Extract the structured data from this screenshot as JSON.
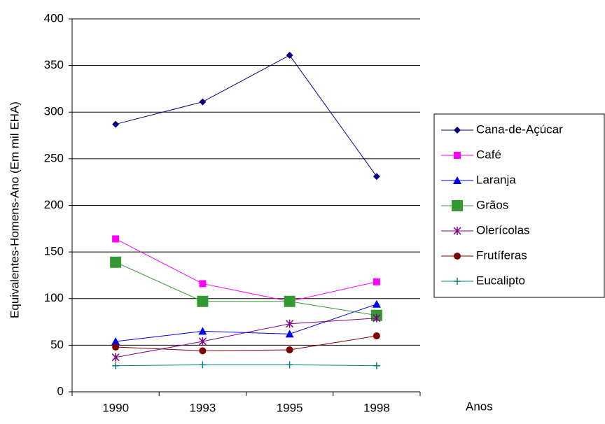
{
  "chart_data": {
    "type": "line",
    "x_label": "Anos",
    "y_label": "Equivalentes-Homens-Ano (Em mil EHA)",
    "categories": [
      "1990",
      "1993",
      "1995",
      "1998"
    ],
    "ylim": [
      0,
      400
    ],
    "yticks": [
      0,
      50,
      100,
      150,
      200,
      250,
      300,
      350,
      400
    ],
    "grid": true,
    "legend": "right",
    "series": [
      {
        "name": "Cana-de-Açúcar",
        "color": "#000080",
        "marker": "diamond",
        "values": [
          287,
          311,
          361,
          231
        ]
      },
      {
        "name": "Café",
        "color": "#ff00ff",
        "marker": "square",
        "values": [
          164,
          116,
          97,
          118
        ]
      },
      {
        "name": "Laranja",
        "color": "#0000ff",
        "marker": "triangle",
        "values": [
          54,
          65,
          62,
          94
        ]
      },
      {
        "name": "Grãos",
        "color": "#339933",
        "marker": "bigsquare",
        "values": [
          139,
          97,
          97,
          82
        ]
      },
      {
        "name": "Olerícolas",
        "color": "#800080",
        "marker": "star",
        "values": [
          37,
          54,
          73,
          79
        ]
      },
      {
        "name": "Frutíferas",
        "color": "#800000",
        "marker": "circle",
        "values": [
          48,
          44,
          45,
          60
        ]
      },
      {
        "name": "Eucalipto",
        "color": "#008080",
        "marker": "plus",
        "values": [
          28,
          29,
          29,
          28
        ]
      }
    ]
  }
}
